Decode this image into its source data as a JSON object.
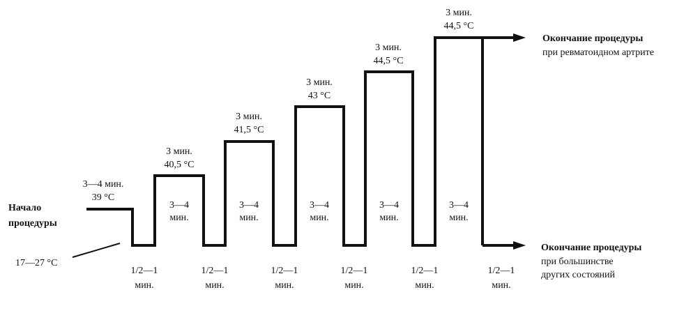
{
  "start": {
    "label_line1": "Начало",
    "label_line2": "процедуры",
    "room_temp": "17—27 °С"
  },
  "first_hot": {
    "duration": "3—4 мин.",
    "temp": "39 °С"
  },
  "hot_steps": [
    {
      "duration": "3 мин.",
      "temp": "40,5 °С"
    },
    {
      "duration": "3 мин.",
      "temp": "41,5 °С"
    },
    {
      "duration": "3 мин.",
      "temp": "43 °С"
    },
    {
      "duration": "3 мин.",
      "temp": "44,5 °С"
    },
    {
      "duration": "3 мин.",
      "temp": "44,5 °С"
    }
  ],
  "hot_inner": [
    {
      "line1": "3—4",
      "line2": "мин."
    },
    {
      "line1": "3—4",
      "line2": "мин."
    },
    {
      "line1": "3—4",
      "line2": "мин."
    },
    {
      "line1": "3—4",
      "line2": "мин."
    },
    {
      "line1": "3—4",
      "line2": "мин."
    }
  ],
  "cold_steps": [
    {
      "line1": "1/2—1",
      "line2": "мин."
    },
    {
      "line1": "1/2—1",
      "line2": "мин."
    },
    {
      "line1": "1/2—1",
      "line2": "мин."
    },
    {
      "line1": "1/2—1",
      "line2": "мин."
    },
    {
      "line1": "1/2—1",
      "line2": "мин."
    },
    {
      "line1": "1/2—1",
      "line2": "мин."
    }
  ],
  "end_top": {
    "title": "Окончание процедуры",
    "subtitle": "при ревматоидном артрите"
  },
  "end_bottom": {
    "title": "Окончание процедуры",
    "subtitle_line1": "при большинстве",
    "subtitle_line2": "других состояний"
  },
  "colors": {
    "line": "#111111",
    "background": "#ffffff"
  }
}
